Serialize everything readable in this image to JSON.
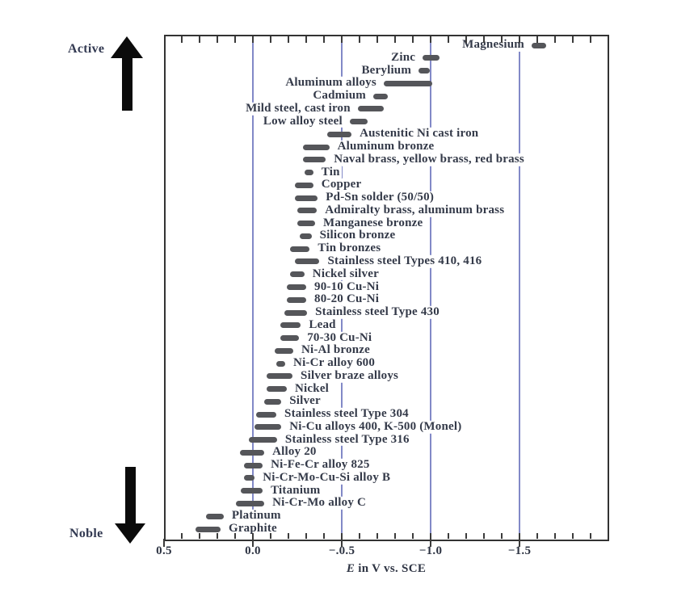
{
  "chart_data": {
    "type": "bar",
    "subtype": "horizontal-range-bars",
    "title": "",
    "xlabel_italic": "E",
    "xlabel_rest": " in V vs. SCE",
    "x_range": [
      0.5,
      -2.0
    ],
    "x_tick_values": [
      0.5,
      0.0,
      -0.5,
      -1.0,
      -1.5
    ],
    "x_tick_labels": [
      "0.5",
      "0.0",
      "−.0.5",
      "−1.0",
      "−1.5"
    ],
    "minor_tick_step": 0.1,
    "gridline_values": [
      0.0,
      -0.5,
      -1.0,
      -1.5
    ],
    "grid": "vertical-only",
    "annotations": {
      "top_direction": "Active",
      "bottom_direction": "Noble"
    },
    "legend_position": "none",
    "series": [
      {
        "label": "Magnesium",
        "e_from": -1.568,
        "e_to": -1.65,
        "label_side": "left"
      },
      {
        "label": "Zinc",
        "e_from": -0.955,
        "e_to": -1.05,
        "label_side": "left"
      },
      {
        "label": "Berylium",
        "e_from": -0.932,
        "e_to": -0.995,
        "label_side": "left"
      },
      {
        "label": "Aluminum alloys",
        "e_from": -0.736,
        "e_to": -1.009,
        "label_side": "left"
      },
      {
        "label": "Cadmium",
        "e_from": -0.677,
        "e_to": -0.76,
        "label_side": "left"
      },
      {
        "label": "Mild steel, cast iron",
        "e_from": -0.59,
        "e_to": -0.736,
        "label_side": "left"
      },
      {
        "label": "Low alloy steel",
        "e_from": -0.545,
        "e_to": -0.645,
        "label_side": "left"
      },
      {
        "label": "Austenitic Ni cast iron",
        "e_from": -0.42,
        "e_to": -0.555,
        "label_side": "right"
      },
      {
        "label": "Aluminum bronze",
        "e_from": -0.28,
        "e_to": -0.43,
        "label_side": "right"
      },
      {
        "label": "Naval brass, yellow brass, red brass",
        "e_from": -0.28,
        "e_to": -0.41,
        "label_side": "right"
      },
      {
        "label": "Tin",
        "e_from": -0.29,
        "e_to": -0.34,
        "label_side": "right"
      },
      {
        "label": "Copper",
        "e_from": -0.235,
        "e_to": -0.34,
        "label_side": "right"
      },
      {
        "label": "Pd-Sn solder (50/50)",
        "e_from": -0.235,
        "e_to": -0.365,
        "label_side": "right"
      },
      {
        "label": "Admiralty brass, aluminum brass",
        "e_from": -0.25,
        "e_to": -0.36,
        "label_side": "right"
      },
      {
        "label": "Manganese bronze",
        "e_from": -0.25,
        "e_to": -0.35,
        "label_side": "right"
      },
      {
        "label": "Silicon bronze",
        "e_from": -0.265,
        "e_to": -0.33,
        "label_side": "right"
      },
      {
        "label": "Tin bronzes",
        "e_from": -0.21,
        "e_to": -0.32,
        "label_side": "right"
      },
      {
        "label": "Stainless steel Types 410, 416",
        "e_from": -0.235,
        "e_to": -0.375,
        "label_side": "right"
      },
      {
        "label": "Nickel silver",
        "e_from": -0.21,
        "e_to": -0.29,
        "label_side": "right"
      },
      {
        "label": "90-10 Cu-Ni",
        "e_from": -0.19,
        "e_to": -0.3,
        "label_side": "right"
      },
      {
        "label": "80-20 Cu-Ni",
        "e_from": -0.19,
        "e_to": -0.3,
        "label_side": "right"
      },
      {
        "label": "Stainless steel Type 430",
        "e_from": -0.177,
        "e_to": -0.305,
        "label_side": "right"
      },
      {
        "label": "Lead",
        "e_from": -0.155,
        "e_to": -0.27,
        "label_side": "right"
      },
      {
        "label": "70-30 Cu-Ni",
        "e_from": -0.155,
        "e_to": -0.26,
        "label_side": "right"
      },
      {
        "label": "Ni-Al bronze",
        "e_from": -0.123,
        "e_to": -0.227,
        "label_side": "right"
      },
      {
        "label": "Ni-Cr alloy 600",
        "e_from": -0.132,
        "e_to": -0.182,
        "label_side": "right"
      },
      {
        "label": "Silver braze alloys",
        "e_from": -0.077,
        "e_to": -0.223,
        "label_side": "right"
      },
      {
        "label": "Nickel",
        "e_from": -0.077,
        "e_to": -0.191,
        "label_side": "right"
      },
      {
        "label": "Silver",
        "e_from": -0.065,
        "e_to": -0.16,
        "label_side": "right"
      },
      {
        "label": "Stainless steel Type 304",
        "e_from": -0.018,
        "e_to": -0.132,
        "label_side": "right"
      },
      {
        "label": "Ni-Cu alloys 400, K-500 (Monel)",
        "e_from": -0.01,
        "e_to": -0.16,
        "label_side": "right"
      },
      {
        "label": "Stainless steel Type 316",
        "e_from": 0.023,
        "e_to": -0.136,
        "label_side": "right"
      },
      {
        "label": "Alloy 20",
        "e_from": 0.073,
        "e_to": -0.064,
        "label_side": "right"
      },
      {
        "label": "Ni-Fe-Cr alloy 825",
        "e_from": 0.05,
        "e_to": -0.055,
        "label_side": "right"
      },
      {
        "label": "Ni-Cr-Mo-Cu-Si alloy B",
        "e_from": 0.05,
        "e_to": -0.01,
        "label_side": "right"
      },
      {
        "label": "Titanium",
        "e_from": 0.068,
        "e_to": -0.055,
        "label_side": "right"
      },
      {
        "label": "Ni-Cr-Mo alloy C",
        "e_from": 0.095,
        "e_to": -0.064,
        "label_side": "right"
      },
      {
        "label": "Platinum",
        "e_from": 0.264,
        "e_to": 0.164,
        "label_side": "right"
      },
      {
        "label": "Graphite",
        "e_from": 0.323,
        "e_to": 0.182,
        "label_side": "right"
      }
    ],
    "colors": {
      "bar": "#55565a",
      "gridline": "#8289c7",
      "axis": "#333333",
      "label_text": "#343a49",
      "arrow": "#0b0b0b",
      "background": "#ffffff"
    }
  }
}
